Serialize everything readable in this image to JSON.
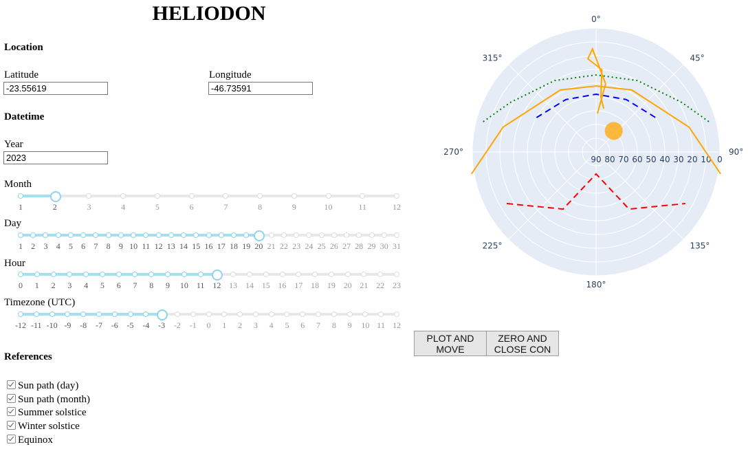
{
  "app": {
    "title": "HELIODON"
  },
  "location": {
    "heading": "Location",
    "latitude_label": "Latitude",
    "latitude_value": "-23.55619",
    "longitude_label": "Longitude",
    "longitude_value": "-46.73591"
  },
  "datetime": {
    "heading": "Datetime",
    "year_label": "Year",
    "year_value": "2023",
    "month": {
      "label": "Month",
      "marks": [
        "1",
        "2",
        "3",
        "4",
        "5",
        "6",
        "7",
        "8",
        "9",
        "10",
        "11",
        "12"
      ],
      "value_index": 1
    },
    "day": {
      "label": "Day",
      "marks": [
        "1",
        "2",
        "3",
        "4",
        "5",
        "6",
        "7",
        "8",
        "9",
        "10",
        "11",
        "12",
        "13",
        "14",
        "15",
        "16",
        "17",
        "18",
        "19",
        "20",
        "21",
        "22",
        "23",
        "24",
        "25",
        "26",
        "27",
        "28",
        "29",
        "30",
        "31"
      ],
      "value_index": 19
    },
    "hour": {
      "label": "Hour",
      "marks": [
        "0",
        "1",
        "2",
        "3",
        "4",
        "5",
        "6",
        "7",
        "8",
        "9",
        "10",
        "11",
        "12",
        "13",
        "14",
        "15",
        "16",
        "17",
        "18",
        "19",
        "20",
        "21",
        "22",
        "23"
      ],
      "value_index": 12
    },
    "timezone": {
      "label": "Timezone (UTC)",
      "marks": [
        "-12",
        "-11",
        "-10",
        "-9",
        "-8",
        "-7",
        "-6",
        "-5",
        "-4",
        "-3",
        "-2",
        "-1",
        "0",
        "1",
        "2",
        "3",
        "4",
        "5",
        "6",
        "7",
        "8",
        "9",
        "10",
        "11",
        "12"
      ],
      "value_index": 9
    }
  },
  "buttons": {
    "plot_line1": "PLOT AND",
    "plot_line2": "MOVE",
    "zero_line1": "ZERO AND",
    "zero_line2": "CLOSE CON"
  },
  "references": {
    "heading": "References",
    "items": [
      {
        "label": "Sun path (day)",
        "checked": true
      },
      {
        "label": "Sun path (month)",
        "checked": true
      },
      {
        "label": "Summer solstice",
        "checked": true
      },
      {
        "label": "Winter solstice",
        "checked": true
      },
      {
        "label": "Equinox",
        "checked": true
      }
    ]
  },
  "chart_data": {
    "type": "polar",
    "angular_ticks": [
      "0°",
      "45°",
      "90°",
      "135°",
      "180°",
      "225°",
      "270°",
      "315°"
    ],
    "radial_ticks": [
      "90",
      "80",
      "70",
      "60",
      "50",
      "40",
      "30",
      "20",
      "10",
      "0"
    ],
    "radial_range": [
      90,
      0
    ],
    "background": "#e5ecf6",
    "series": [
      {
        "line_color": "#0000ff",
        "dash": "dash",
        "points": [
          [
            300,
            40
          ],
          [
            330,
            46
          ],
          [
            0,
            48
          ],
          [
            30,
            46
          ],
          [
            60,
            40
          ]
        ]
      },
      {
        "line_color": "#008000",
        "dash": "dot",
        "points": [
          [
            285,
            5
          ],
          [
            300,
            18
          ],
          [
            330,
            30
          ],
          [
            0,
            34
          ],
          [
            30,
            30
          ],
          [
            60,
            18
          ],
          [
            75,
            5
          ]
        ]
      },
      {
        "line_color": "#ff0000",
        "dash": "dash",
        "points": [
          [
            240,
            15
          ],
          [
            210,
            42
          ],
          [
            180,
            74
          ],
          [
            150,
            42
          ],
          [
            120,
            15
          ]
        ]
      },
      {
        "line_color": "#ffa500",
        "dash": "solid",
        "points": [
          [
            260,
            -2
          ],
          [
            285,
            20
          ],
          [
            330,
            38
          ],
          [
            0,
            42
          ],
          [
            30,
            38
          ],
          [
            75,
            20
          ],
          [
            100,
            -2
          ]
        ]
      },
      {
        "line_color": "#ffa500",
        "dash": "solid",
        "points": [
          [
            10,
            58
          ],
          [
            5,
            50
          ],
          [
            4,
            30
          ],
          [
            355,
            22
          ],
          [
            358,
            15
          ],
          [
            8,
            40
          ],
          [
            2,
            62
          ]
        ]
      }
    ],
    "sun_marker": {
      "azimuth": 40,
      "altitude": 70,
      "color": "#ffa500"
    }
  },
  "colors": {
    "slider_accent": "#8fd3ed",
    "polar_bg": "#e5ecf6"
  }
}
